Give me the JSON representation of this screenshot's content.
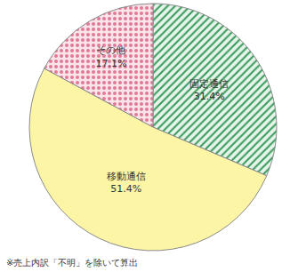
{
  "chart_data": {
    "type": "pie",
    "categories": [
      "固定通信",
      "移動通信",
      "その他"
    ],
    "values": [
      31.4,
      51.4,
      17.1
    ],
    "value_labels": [
      "31.4%",
      "51.4%",
      "17.1%"
    ],
    "colors": [
      "#3a9a5c",
      "#fdf5a6",
      "#e07a96"
    ],
    "data_labels": true,
    "annotations": [
      "※売上内訳「不明」を除いて算出"
    ]
  }
}
